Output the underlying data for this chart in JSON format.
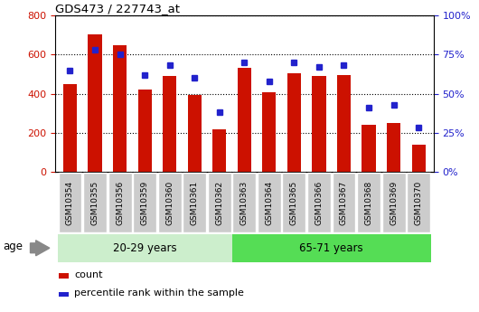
{
  "title": "GDS473 / 227743_at",
  "samples": [
    "GSM10354",
    "GSM10355",
    "GSM10356",
    "GSM10359",
    "GSM10360",
    "GSM10361",
    "GSM10362",
    "GSM10363",
    "GSM10364",
    "GSM10365",
    "GSM10366",
    "GSM10367",
    "GSM10368",
    "GSM10369",
    "GSM10370"
  ],
  "counts": [
    450,
    705,
    648,
    422,
    490,
    395,
    218,
    530,
    407,
    505,
    490,
    495,
    240,
    248,
    140
  ],
  "percentiles": [
    65,
    78,
    75,
    62,
    68,
    60,
    38,
    70,
    58,
    70,
    67,
    68,
    41,
    43,
    28
  ],
  "group1_label": "20-29 years",
  "group2_label": "65-71 years",
  "group1_count": 7,
  "group2_count": 8,
  "bar_color": "#CC1100",
  "dot_color": "#2222CC",
  "group1_bg": "#CCEECC",
  "group2_bg": "#55DD55",
  "ylim_left": [
    0,
    800
  ],
  "ylim_right": [
    0,
    100
  ],
  "yticks_left": [
    0,
    200,
    400,
    600,
    800
  ],
  "yticks_right": [
    0,
    25,
    50,
    75,
    100
  ],
  "ylabel_left_color": "#CC1100",
  "ylabel_right_color": "#2222CC",
  "legend_count_label": "count",
  "legend_pct_label": "percentile rank within the sample",
  "age_label": "age",
  "xticklabel_bg": "#CCCCCC",
  "fig_width": 5.3,
  "fig_height": 3.45,
  "dpi": 100
}
